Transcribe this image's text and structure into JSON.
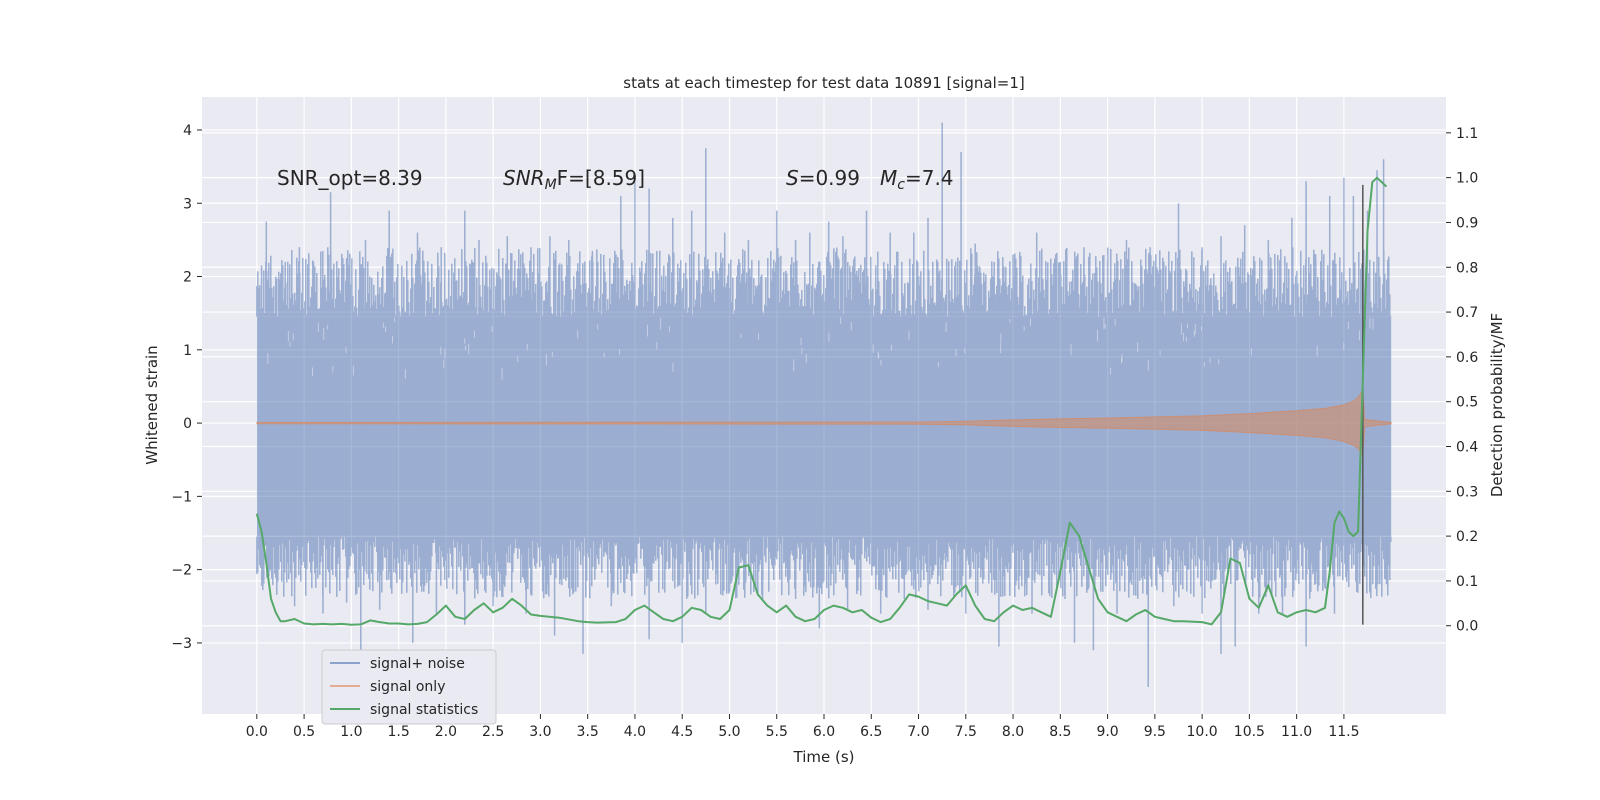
{
  "chart_data": {
    "type": "line",
    "title": "stats at each timestep for test data 10891 [signal=1]",
    "xlabel": "Time (s)",
    "ylabel": "Whitened strain",
    "y2label": "Detection probability/MF",
    "xlim": [
      -0.58,
      12.58
    ],
    "ylim": [
      -3.97,
      4.45
    ],
    "y2lim": [
      -0.197,
      1.18
    ],
    "x_ticks": [
      0.0,
      0.5,
      1.0,
      1.5,
      2.0,
      2.5,
      3.0,
      3.5,
      4.0,
      4.5,
      5.0,
      5.5,
      6.0,
      6.5,
      7.0,
      7.5,
      8.0,
      8.5,
      9.0,
      9.5,
      10.0,
      10.5,
      11.0,
      11.5
    ],
    "x_tick_labels": [
      "0.0",
      "0.5",
      "1.0",
      "1.5",
      "2.0",
      "2.5",
      "3.0",
      "3.5",
      "4.0",
      "4.5",
      "5.0",
      "5.5",
      "6.0",
      "6.5",
      "7.0",
      "7.5",
      "8.0",
      "8.5",
      "9.0",
      "9.5",
      "10.0",
      "10.5",
      "11.0",
      "11.5"
    ],
    "y_ticks": [
      -3,
      -2,
      -1,
      0,
      1,
      2,
      3,
      4
    ],
    "y_tick_labels": [
      "−3",
      "−2",
      "−1",
      "0",
      "1",
      "2",
      "3",
      "4"
    ],
    "y2_ticks": [
      0.0,
      0.1,
      0.2,
      0.3,
      0.4,
      0.5,
      0.6,
      0.7,
      0.8,
      0.9,
      1.0,
      1.1
    ],
    "y2_tick_labels": [
      "0.0",
      "0.1",
      "0.2",
      "0.3",
      "0.4",
      "0.5",
      "0.6",
      "0.7",
      "0.8",
      "0.9",
      "1.0",
      "1.1"
    ],
    "grid": true,
    "legend_position": "lower-left",
    "annotations": {
      "snr_opt": "SNR_opt=8.39",
      "snr_mf_sym": "SNR",
      "snr_mf_sub": "M",
      "snr_mf_rest": "F=[8.59]",
      "s_sym": "S",
      "s_rest": "=0.99",
      "mc_sym": "M",
      "mc_sub": "c",
      "mc_rest": "=7.4"
    },
    "marker_line": {
      "x": 11.7,
      "y_range": [
        -2.75,
        3.25
      ]
    },
    "series": [
      {
        "name": "signal+ noise",
        "color": "#4c72b0",
        "opacity": 0.5,
        "x_range": [
          0.0,
          12.0
        ],
        "band": [
          -1.55,
          1.45
        ],
        "peaks_up": [
          [
            0.05,
            2.15
          ],
          [
            0.1,
            2.75
          ],
          [
            0.3,
            2.2
          ],
          [
            0.45,
            2.4
          ],
          [
            0.6,
            2.2
          ],
          [
            0.78,
            3.15
          ],
          [
            0.95,
            2.25
          ],
          [
            1.15,
            2.5
          ],
          [
            1.4,
            2.9
          ],
          [
            1.7,
            2.6
          ],
          [
            1.95,
            2.4
          ],
          [
            2.2,
            2.9
          ],
          [
            2.35,
            2.5
          ],
          [
            2.65,
            2.55
          ],
          [
            2.9,
            2.4
          ],
          [
            3.1,
            2.55
          ],
          [
            3.3,
            2.5
          ],
          [
            3.55,
            2.35
          ],
          [
            3.8,
            2.3
          ],
          [
            3.85,
            3.1
          ],
          [
            4.0,
            3.3
          ],
          [
            4.15,
            3.2
          ],
          [
            4.4,
            2.8
          ],
          [
            4.6,
            2.9
          ],
          [
            4.75,
            3.75
          ],
          [
            4.95,
            2.6
          ],
          [
            5.2,
            2.5
          ],
          [
            5.5,
            2.9
          ],
          [
            5.7,
            2.5
          ],
          [
            5.85,
            2.6
          ],
          [
            6.05,
            2.75
          ],
          [
            6.2,
            2.55
          ],
          [
            6.45,
            2.9
          ],
          [
            6.7,
            2.6
          ],
          [
            6.95,
            2.6
          ],
          [
            7.1,
            2.8
          ],
          [
            7.25,
            4.1
          ],
          [
            7.45,
            3.7
          ],
          [
            7.6,
            2.45
          ],
          [
            7.8,
            2.2
          ],
          [
            8.0,
            2.3
          ],
          [
            8.25,
            2.6
          ],
          [
            8.5,
            2.2
          ],
          [
            8.75,
            2.4
          ],
          [
            9.0,
            2.2
          ],
          [
            9.2,
            2.5
          ],
          [
            9.45,
            2.4
          ],
          [
            9.75,
            3.0
          ],
          [
            10.0,
            2.4
          ],
          [
            10.2,
            2.55
          ],
          [
            10.45,
            2.7
          ],
          [
            10.7,
            2.5
          ],
          [
            10.95,
            2.8
          ],
          [
            11.1,
            3.3
          ],
          [
            11.2,
            2.3
          ],
          [
            11.35,
            3.1
          ],
          [
            11.5,
            3.35
          ],
          [
            11.6,
            3.1
          ],
          [
            11.75,
            2.9
          ],
          [
            11.85,
            3.45
          ],
          [
            11.92,
            3.6
          ]
        ],
        "peaks_down": [
          [
            0.15,
            -2.0
          ],
          [
            0.4,
            -2.5
          ],
          [
            0.7,
            -2.6
          ],
          [
            0.95,
            -2.45
          ],
          [
            1.1,
            -3.1
          ],
          [
            1.3,
            -2.55
          ],
          [
            1.65,
            -3.0
          ],
          [
            1.9,
            -2.6
          ],
          [
            2.2,
            -2.75
          ],
          [
            2.5,
            -2.5
          ],
          [
            2.85,
            -2.6
          ],
          [
            3.15,
            -2.9
          ],
          [
            3.45,
            -3.15
          ],
          [
            3.75,
            -2.5
          ],
          [
            4.15,
            -2.95
          ],
          [
            4.5,
            -3.0
          ],
          [
            4.75,
            -2.6
          ],
          [
            5.0,
            -2.3
          ],
          [
            5.35,
            -2.4
          ],
          [
            5.7,
            -2.4
          ],
          [
            5.95,
            -2.8
          ],
          [
            6.25,
            -2.55
          ],
          [
            6.6,
            -2.6
          ],
          [
            6.85,
            -2.4
          ],
          [
            7.1,
            -2.55
          ],
          [
            7.5,
            -2.6
          ],
          [
            7.85,
            -3.05
          ],
          [
            8.2,
            -2.6
          ],
          [
            8.55,
            -2.4
          ],
          [
            8.65,
            -3.0
          ],
          [
            8.85,
            -3.1
          ],
          [
            9.1,
            -2.6
          ],
          [
            9.43,
            -3.6
          ],
          [
            9.7,
            -2.5
          ],
          [
            10.0,
            -2.6
          ],
          [
            10.2,
            -3.15
          ],
          [
            10.35,
            -3.05
          ],
          [
            10.6,
            -2.6
          ],
          [
            10.85,
            -2.6
          ],
          [
            11.1,
            -3.05
          ],
          [
            11.4,
            -2.6
          ],
          [
            11.7,
            -2.5
          ],
          [
            11.95,
            -2.2
          ]
        ]
      },
      {
        "name": "signal only",
        "color": "#dd8452",
        "opacity": 0.5,
        "envelope": [
          [
            0.0,
            0.01
          ],
          [
            7.0,
            0.015
          ],
          [
            7.5,
            0.025
          ],
          [
            8.0,
            0.045
          ],
          [
            8.5,
            0.06
          ],
          [
            9.0,
            0.07
          ],
          [
            9.5,
            0.085
          ],
          [
            10.0,
            0.1
          ],
          [
            10.5,
            0.13
          ],
          [
            11.0,
            0.17
          ],
          [
            11.3,
            0.2
          ],
          [
            11.5,
            0.25
          ],
          [
            11.6,
            0.3
          ],
          [
            11.65,
            0.35
          ],
          [
            11.7,
            0.45
          ],
          [
            11.72,
            0.05
          ],
          [
            12.0,
            0.01
          ]
        ]
      },
      {
        "name": "signal statistics",
        "color": "#55a868",
        "axis": "right",
        "x": [
          0.0,
          0.05,
          0.1,
          0.15,
          0.2,
          0.25,
          0.3,
          0.4,
          0.5,
          0.6,
          0.7,
          0.8,
          0.9,
          1.0,
          1.1,
          1.2,
          1.3,
          1.4,
          1.5,
          1.6,
          1.7,
          1.8,
          1.9,
          2.0,
          2.1,
          2.2,
          2.3,
          2.4,
          2.5,
          2.6,
          2.7,
          2.8,
          2.9,
          3.0,
          3.2,
          3.4,
          3.5,
          3.6,
          3.8,
          3.9,
          4.0,
          4.1,
          4.2,
          4.3,
          4.4,
          4.5,
          4.6,
          4.7,
          4.8,
          4.9,
          5.0,
          5.1,
          5.2,
          5.3,
          5.4,
          5.5,
          5.6,
          5.7,
          5.8,
          5.9,
          6.0,
          6.1,
          6.2,
          6.3,
          6.4,
          6.5,
          6.6,
          6.7,
          6.8,
          6.9,
          7.0,
          7.1,
          7.2,
          7.3,
          7.4,
          7.5,
          7.6,
          7.7,
          7.8,
          7.9,
          8.0,
          8.1,
          8.2,
          8.3,
          8.4,
          8.5,
          8.6,
          8.7,
          8.8,
          8.9,
          9.0,
          9.1,
          9.2,
          9.3,
          9.4,
          9.5,
          9.6,
          9.7,
          9.8,
          10.0,
          10.1,
          10.2,
          10.3,
          10.4,
          10.5,
          10.6,
          10.7,
          10.8,
          10.9,
          11.0,
          11.1,
          11.2,
          11.3,
          11.35,
          11.4,
          11.45,
          11.5,
          11.55,
          11.6,
          11.65,
          11.7,
          11.75,
          11.8,
          11.85,
          11.9,
          11.95
        ],
        "y": [
          0.25,
          0.21,
          0.14,
          0.06,
          0.03,
          0.01,
          0.01,
          0.015,
          0.005,
          0.003,
          0.004,
          0.003,
          0.004,
          0.002,
          0.003,
          0.012,
          0.008,
          0.005,
          0.005,
          0.003,
          0.004,
          0.008,
          0.025,
          0.045,
          0.02,
          0.015,
          0.035,
          0.05,
          0.03,
          0.04,
          0.06,
          0.045,
          0.025,
          0.022,
          0.018,
          0.01,
          0.008,
          0.007,
          0.008,
          0.015,
          0.035,
          0.045,
          0.03,
          0.015,
          0.01,
          0.02,
          0.04,
          0.035,
          0.02,
          0.015,
          0.035,
          0.13,
          0.135,
          0.07,
          0.045,
          0.03,
          0.045,
          0.02,
          0.01,
          0.015,
          0.035,
          0.045,
          0.04,
          0.03,
          0.035,
          0.018,
          0.008,
          0.015,
          0.04,
          0.07,
          0.065,
          0.055,
          0.05,
          0.045,
          0.07,
          0.09,
          0.045,
          0.015,
          0.01,
          0.03,
          0.045,
          0.035,
          0.04,
          0.03,
          0.02,
          0.12,
          0.23,
          0.2,
          0.13,
          0.06,
          0.03,
          0.02,
          0.01,
          0.025,
          0.035,
          0.02,
          0.015,
          0.01,
          0.01,
          0.008,
          0.003,
          0.03,
          0.15,
          0.14,
          0.06,
          0.04,
          0.09,
          0.03,
          0.02,
          0.03,
          0.035,
          0.03,
          0.04,
          0.12,
          0.23,
          0.255,
          0.24,
          0.21,
          0.2,
          0.21,
          0.55,
          0.88,
          0.99,
          1.0,
          0.99,
          0.98
        ]
      }
    ]
  }
}
